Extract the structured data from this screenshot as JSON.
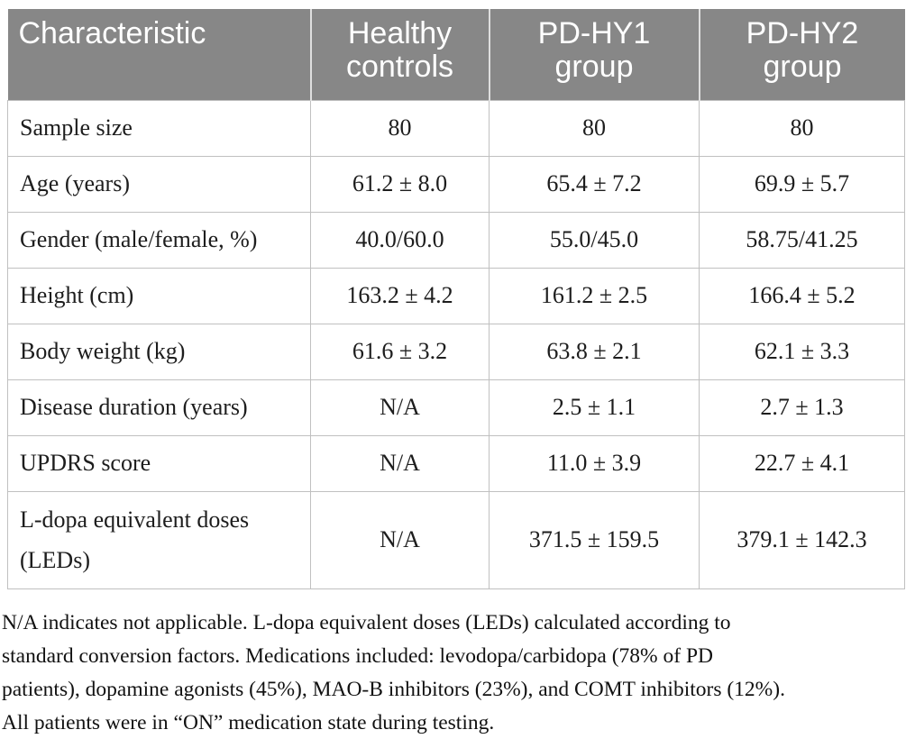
{
  "colors": {
    "header_bg": "#878787",
    "header_text": "#ffffff",
    "body_text": "#1d1d1d",
    "cell_border": "#c0c0c0",
    "header_divider": "#dedede"
  },
  "table": {
    "columns": [
      {
        "label": "Characteristic"
      },
      {
        "label": "Healthy\ncontrols"
      },
      {
        "label": "PD-HY1\ngroup"
      },
      {
        "label": "PD-HY2\ngroup"
      }
    ],
    "rows": [
      {
        "label": "Sample size",
        "values": [
          "80",
          "80",
          "80"
        ]
      },
      {
        "label": "Age (years)",
        "values": [
          "61.2 ± 8.0",
          "65.4 ± 7.2",
          "69.9 ± 5.7"
        ]
      },
      {
        "label": "Gender (male/female, %)",
        "values": [
          "40.0/60.0",
          "55.0/45.0",
          "58.75/41.25"
        ]
      },
      {
        "label": "Height (cm)",
        "values": [
          "163.2 ± 4.2",
          "161.2 ± 2.5",
          "166.4 ± 5.2"
        ]
      },
      {
        "label": "Body weight (kg)",
        "values": [
          "61.6 ± 3.2",
          "63.8 ± 2.1",
          "62.1 ± 3.3"
        ]
      },
      {
        "label": "Disease duration (years)",
        "values": [
          "N/A",
          "2.5 ± 1.1",
          "2.7 ± 1.3"
        ]
      },
      {
        "label": "UPDRS score",
        "values": [
          "N/A",
          "11.0 ± 3.9",
          "22.7 ± 4.1"
        ]
      },
      {
        "label": "L-dopa equivalent doses (LEDs)",
        "values": [
          "N/A",
          "371.5 ± 159.5",
          "379.1 ± 142.3"
        ]
      }
    ]
  },
  "footnote": {
    "text": "N/A indicates not applicable. L-dopa equivalent doses (LEDs) calculated according to\nstandard conversion factors. Medications included: levodopa/carbidopa (78% of PD\npatients), dopamine agonists (45%), MAO-B inhibitors (23%), and COMT inhibitors (12%).\nAll patients were in “ON” medication state during testing."
  }
}
